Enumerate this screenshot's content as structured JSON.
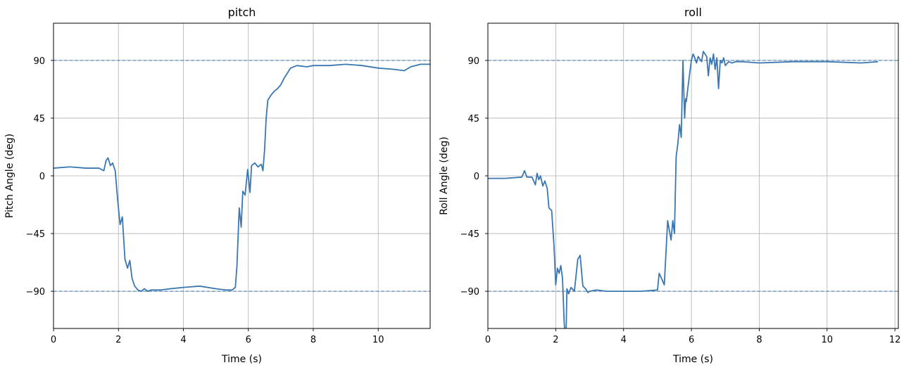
{
  "chart_data": [
    {
      "type": "line",
      "title": "pitch",
      "xlabel": "Time (s)",
      "ylabel": "Pitch Angle (deg)",
      "xlim": [
        0,
        11.6
      ],
      "ylim": [
        -119,
        119
      ],
      "xticks": [
        0,
        2,
        4,
        6,
        8,
        10
      ],
      "xtick_labels": [
        "0",
        "2",
        "4",
        "6",
        "8",
        "10"
      ],
      "yticks": [
        -90,
        -45,
        0,
        45,
        90
      ],
      "ytick_labels": [
        "−90",
        "−45",
        "0",
        "45",
        "90"
      ],
      "grid": true,
      "reference_lines": [
        90,
        -90
      ],
      "series": [
        {
          "color": "#3a76b0",
          "x": [
            0,
            0.5,
            1.0,
            1.4,
            1.55,
            1.62,
            1.68,
            1.75,
            1.82,
            1.9,
            1.98,
            2.05,
            2.12,
            2.2,
            2.28,
            2.35,
            2.42,
            2.5,
            2.6,
            2.7,
            2.8,
            2.9,
            3.0,
            3.3,
            3.6,
            4.0,
            4.5,
            5.0,
            5.3,
            5.5,
            5.6,
            5.65,
            5.72,
            5.78,
            5.83,
            5.9,
            5.98,
            6.05,
            6.1,
            6.2,
            6.3,
            6.4,
            6.45,
            6.5,
            6.55,
            6.6,
            6.7,
            6.8,
            6.9,
            7.0,
            7.1,
            7.2,
            7.3,
            7.5,
            7.8,
            8.0,
            8.5,
            9.0,
            9.5,
            10.0,
            10.5,
            10.8,
            11.0,
            11.3,
            11.6
          ],
          "y": [
            6,
            7,
            6,
            6,
            4,
            12,
            14,
            8,
            10,
            4,
            -20,
            -38,
            -32,
            -65,
            -72,
            -66,
            -80,
            -86,
            -89,
            -90,
            -88,
            -90,
            -89,
            -89,
            -88,
            -87,
            -86,
            -88,
            -89,
            -89,
            -87,
            -70,
            -25,
            -40,
            -12,
            -15,
            5,
            -13,
            8,
            10,
            7,
            9,
            4,
            20,
            45,
            59,
            63,
            66,
            68,
            71,
            76,
            80,
            84,
            86,
            85,
            86,
            86,
            87,
            86,
            84,
            83,
            82,
            85,
            87,
            87
          ]
        }
      ]
    },
    {
      "type": "line",
      "title": "roll",
      "xlabel": "Time (s)",
      "ylabel": "Roll Angle (deg)",
      "xlim": [
        0,
        12.1
      ],
      "ylim": [
        -119,
        119
      ],
      "xticks": [
        0,
        2,
        4,
        6,
        8,
        10,
        12
      ],
      "xtick_labels": [
        "0",
        "2",
        "4",
        "6",
        "8",
        "10",
        "12"
      ],
      "yticks": [
        -90,
        -45,
        0,
        45,
        90
      ],
      "ytick_labels": [
        "−90",
        "−45",
        "0",
        "45",
        "90"
      ],
      "grid": true,
      "reference_lines": [
        90,
        -90
      ],
      "series": [
        {
          "color": "#3a76b0",
          "x": [
            0,
            0.5,
            1.0,
            1.08,
            1.15,
            1.3,
            1.4,
            1.45,
            1.5,
            1.55,
            1.62,
            1.68,
            1.75,
            1.8,
            1.88,
            1.95,
            2.0,
            2.05,
            2.1,
            2.15,
            2.2,
            2.25,
            2.3,
            2.33,
            2.38,
            2.45,
            2.55,
            2.65,
            2.72,
            2.8,
            2.88,
            2.95,
            3.0,
            3.2,
            3.5,
            4.0,
            4.5,
            5.0,
            5.05,
            5.12,
            5.2,
            5.25,
            5.3,
            5.4,
            5.45,
            5.5,
            5.55,
            5.6,
            5.65,
            5.7,
            5.75,
            5.8,
            5.83,
            5.85,
            5.88,
            5.95,
            6.0,
            6.05,
            6.1,
            6.15,
            6.2,
            6.3,
            6.35,
            6.4,
            6.45,
            6.5,
            6.55,
            6.6,
            6.65,
            6.7,
            6.75,
            6.8,
            6.85,
            6.9,
            6.95,
            7.0,
            7.1,
            7.2,
            7.3,
            7.5,
            8.0,
            9.0,
            10.0,
            11.0,
            11.5
          ],
          "y": [
            -2,
            -2,
            -1,
            4,
            -1,
            -1,
            -7,
            2,
            -3,
            0,
            -8,
            -4,
            -10,
            -25,
            -27,
            -55,
            -85,
            -72,
            -76,
            -70,
            -80,
            -115,
            -130,
            -88,
            -92,
            -87,
            -90,
            -65,
            -62,
            -86,
            -88,
            -91,
            -90,
            -89,
            -90,
            -90,
            -90,
            -89,
            -76,
            -80,
            -85,
            -60,
            -35,
            -50,
            -35,
            -45,
            15,
            25,
            40,
            30,
            90,
            45,
            60,
            58,
            65,
            80,
            90,
            95,
            92,
            88,
            93,
            89,
            97,
            95,
            93,
            78,
            92,
            87,
            95,
            83,
            92,
            68,
            90,
            88,
            92,
            86,
            89,
            88,
            89,
            89,
            88,
            89,
            89,
            88,
            89
          ]
        }
      ]
    }
  ]
}
